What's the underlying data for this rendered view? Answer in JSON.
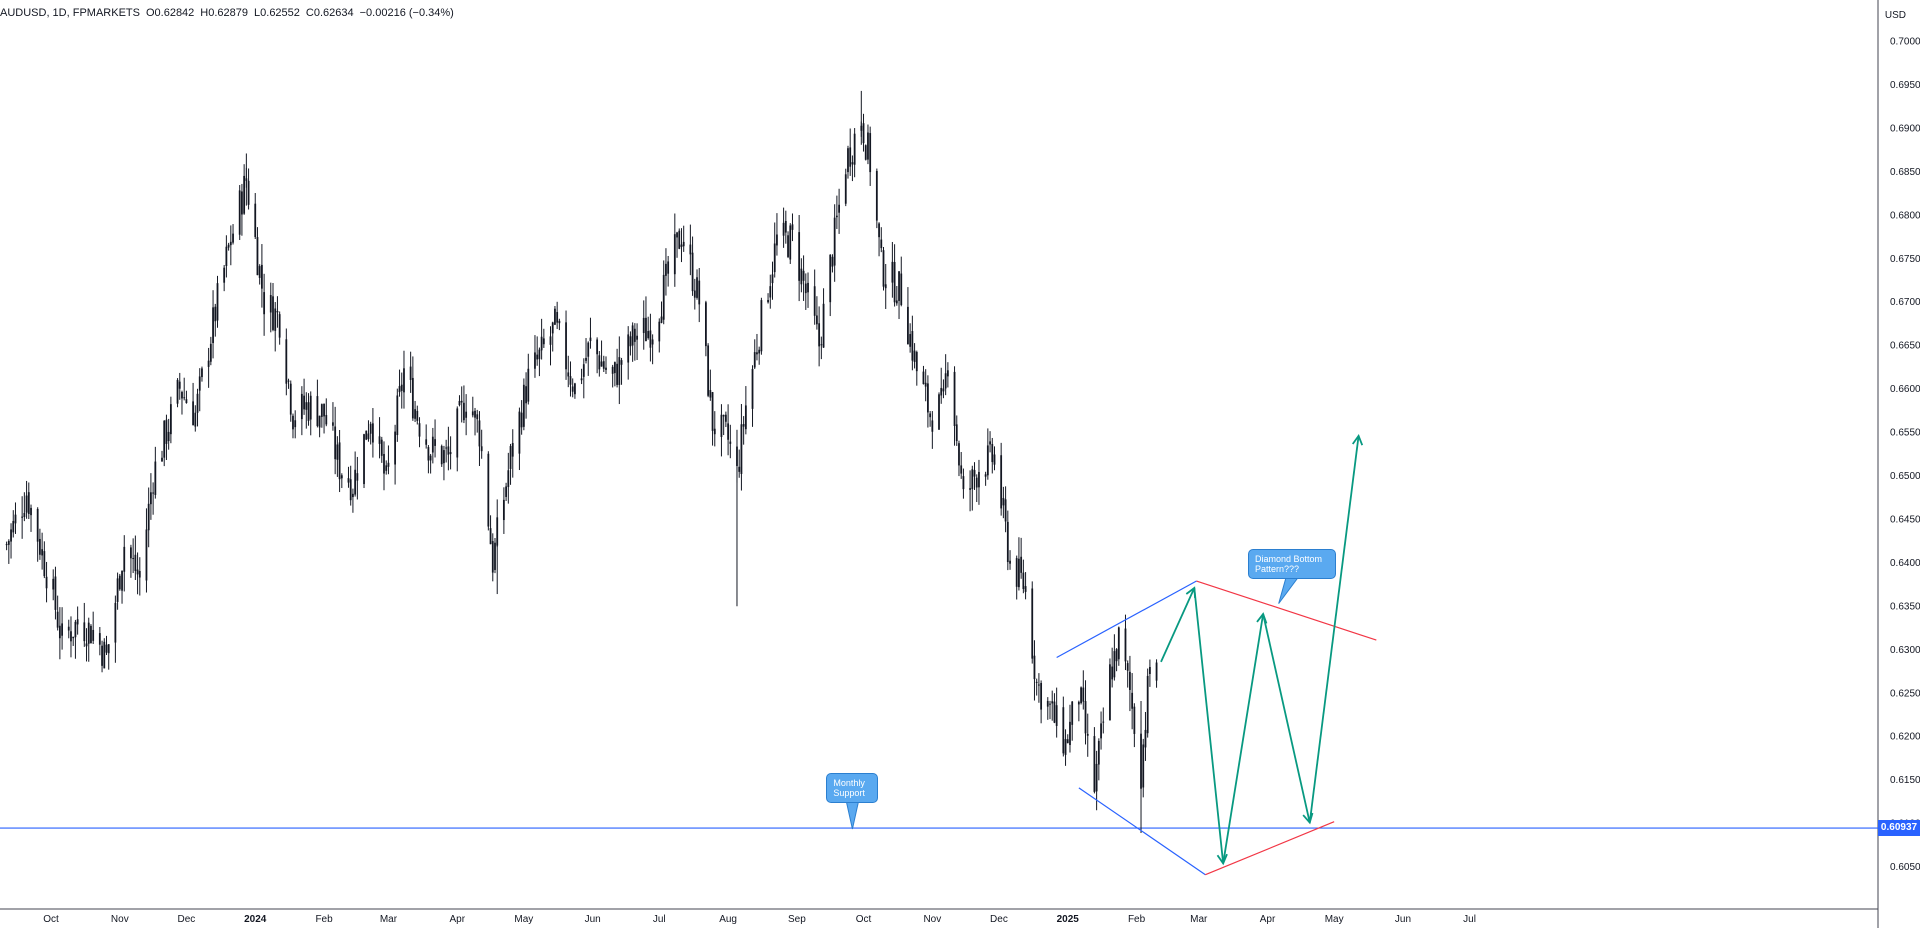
{
  "header": {
    "symbol": "AUDUSD, 1D, FPMARKETS",
    "open_label": "O",
    "open": "0.62842",
    "high_label": "H",
    "high": "0.62879",
    "low_label": "L",
    "low": "0.62552",
    "close_label": "C",
    "close": "0.62634",
    "change": "−0.00216 (−0.34%)"
  },
  "currency": "USD",
  "current_price_label": "0.60937",
  "annotations": {
    "monthly_support": "Monthly Support",
    "diamond": "Diamond Bottom Pattern???"
  },
  "colors": {
    "candle": "#131722",
    "support_line": "#2962ff",
    "diamond_blue": "#2962ff",
    "diamond_red": "#f23645",
    "projection": "#089981",
    "callout": "#5aa9f0"
  },
  "chart_data": {
    "type": "candlestick",
    "title": "",
    "xlabel": "",
    "ylabel": "",
    "ylim": [
      0.601,
      0.701
    ],
    "y_ticks": [
      "0.60500",
      "0.61000",
      "0.61500",
      "0.62000",
      "0.62500",
      "0.63000",
      "0.63500",
      "0.64000",
      "0.64500",
      "0.65000",
      "0.65500",
      "0.66000",
      "0.66500",
      "0.67000",
      "0.67500",
      "0.68000",
      "0.68500",
      "0.69000",
      "0.69500",
      "0.70000"
    ],
    "x_ticks": [
      "Oct",
      "Nov",
      "Dec",
      "2024",
      "Feb",
      "Mar",
      "Apr",
      "May",
      "Jun",
      "Jul",
      "Aug",
      "Sep",
      "Oct",
      "Nov",
      "Dec",
      "2025",
      "Feb",
      "Mar",
      "Apr",
      "May",
      "Jun",
      "Jul"
    ],
    "x_range": [
      "2023-09-10",
      "2025-07-25"
    ],
    "support_level": 0.60937,
    "price_path": [
      [
        "2023-09-11",
        0.642
      ],
      [
        "2023-09-20",
        0.648
      ],
      [
        "2023-10-02",
        0.636
      ],
      [
        "2023-10-06",
        0.631
      ],
      [
        "2023-10-13",
        0.633
      ],
      [
        "2023-10-20",
        0.632
      ],
      [
        "2023-10-26",
        0.629
      ],
      [
        "2023-11-03",
        0.642
      ],
      [
        "2023-11-10",
        0.638
      ],
      [
        "2023-11-16",
        0.65
      ],
      [
        "2023-11-28",
        0.66
      ],
      [
        "2023-12-05",
        0.657
      ],
      [
        "2023-12-15",
        0.67
      ],
      [
        "2023-12-20",
        0.676
      ],
      [
        "2023-12-28",
        0.684
      ],
      [
        "2024-01-05",
        0.67
      ],
      [
        "2024-01-12",
        0.668
      ],
      [
        "2024-01-18",
        0.657
      ],
      [
        "2024-01-25",
        0.658
      ],
      [
        "2024-02-01",
        0.657
      ],
      [
        "2024-02-08",
        0.651
      ],
      [
        "2024-02-14",
        0.649
      ],
      [
        "2024-02-22",
        0.657
      ],
      [
        "2024-02-29",
        0.649
      ],
      [
        "2024-03-08",
        0.662
      ],
      [
        "2024-03-15",
        0.656
      ],
      [
        "2024-03-20",
        0.653
      ],
      [
        "2024-03-28",
        0.652
      ],
      [
        "2024-04-05",
        0.659
      ],
      [
        "2024-04-11",
        0.655
      ],
      [
        "2024-04-17",
        0.64
      ],
      [
        "2024-04-25",
        0.652
      ],
      [
        "2024-05-03",
        0.661
      ],
      [
        "2024-05-15",
        0.667
      ],
      [
        "2024-05-24",
        0.66
      ],
      [
        "2024-05-31",
        0.665
      ],
      [
        "2024-06-10",
        0.661
      ],
      [
        "2024-06-20",
        0.666
      ],
      [
        "2024-06-28",
        0.667
      ],
      [
        "2024-07-05",
        0.673
      ],
      [
        "2024-07-11",
        0.678
      ],
      [
        "2024-07-19",
        0.67
      ],
      [
        "2024-07-25",
        0.656
      ],
      [
        "2024-08-01",
        0.654
      ],
      [
        "2024-08-05",
        0.65
      ],
      [
        "2024-08-09",
        0.658
      ],
      [
        "2024-08-16",
        0.668
      ],
      [
        "2024-08-23",
        0.677
      ],
      [
        "2024-08-30",
        0.677
      ],
      [
        "2024-09-06",
        0.67
      ],
      [
        "2024-09-11",
        0.665
      ],
      [
        "2024-09-16",
        0.674
      ],
      [
        "2024-09-23",
        0.686
      ],
      [
        "2024-09-30",
        0.691
      ],
      [
        "2024-10-04",
        0.686
      ],
      [
        "2024-10-09",
        0.674
      ],
      [
        "2024-10-18",
        0.671
      ],
      [
        "2024-10-25",
        0.662
      ],
      [
        "2024-10-31",
        0.657
      ],
      [
        "2024-11-06",
        0.658
      ],
      [
        "2024-11-08",
        0.664
      ],
      [
        "2024-11-15",
        0.647
      ],
      [
        "2024-11-22",
        0.651
      ],
      [
        "2024-11-29",
        0.652
      ],
      [
        "2024-12-06",
        0.64
      ],
      [
        "2024-12-13",
        0.637
      ],
      [
        "2024-12-18",
        0.626
      ],
      [
        "2024-12-24",
        0.623
      ],
      [
        "2024-12-31",
        0.619
      ],
      [
        "2025-01-06",
        0.625
      ],
      [
        "2025-01-13",
        0.614
      ],
      [
        "2025-01-20",
        0.627
      ],
      [
        "2025-01-24",
        0.631
      ],
      [
        "2025-01-29",
        0.625
      ],
      [
        "2025-02-03",
        0.616
      ],
      [
        "2025-02-07",
        0.628
      ]
    ],
    "wicks": [
      {
        "date": "2023-12-28",
        "low": 0.681,
        "high": 0.687
      },
      {
        "date": "2024-04-19",
        "low": 0.6363,
        "high": 0.642
      },
      {
        "date": "2024-08-05",
        "low": 0.6349,
        "high": 0.652
      },
      {
        "date": "2024-09-30",
        "low": 0.688,
        "high": 0.6942
      },
      {
        "date": "2025-02-03",
        "low": 0.6088,
        "high": 0.624
      }
    ],
    "last_candle": {
      "date": "2025-02-10",
      "open": 0.62842,
      "high": 0.62879,
      "low": 0.62552,
      "close": 0.62634
    },
    "diamond": {
      "upper_left_blue": [
        [
          "2024-12-27",
          0.629
        ],
        [
          "2025-02-28",
          0.6378
        ]
      ],
      "upper_right_red": [
        [
          "2025-02-28",
          0.6378
        ],
        [
          "2025-05-20",
          0.631
        ]
      ],
      "lower_left_blue": [
        [
          "2025-01-06",
          0.614
        ],
        [
          "2025-03-04",
          0.604
        ]
      ],
      "lower_right_red": [
        [
          "2025-03-04",
          0.604
        ],
        [
          "2025-05-01",
          0.6101
        ]
      ]
    },
    "projection_path": [
      [
        "2025-02-12",
        0.6285
      ],
      [
        "2025-02-27",
        0.637
      ],
      [
        "2025-03-12",
        0.6053
      ],
      [
        "2025-03-30",
        0.634
      ],
      [
        "2025-04-20",
        0.61
      ],
      [
        "2025-05-12",
        0.6545
      ]
    ],
    "callouts": [
      {
        "text_key": "monthly_support",
        "date": "2024-09-26",
        "price": 0.614
      },
      {
        "text_key": "diamond",
        "date": "2025-04-12",
        "price": 0.6398
      }
    ]
  }
}
